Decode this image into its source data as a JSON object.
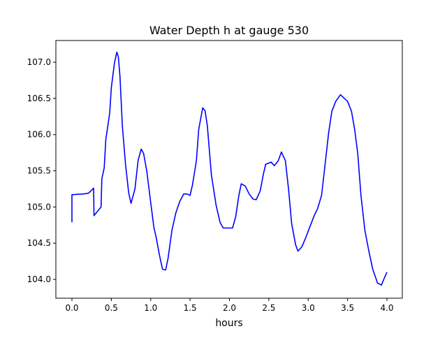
{
  "chart_data": {
    "type": "line",
    "title": "Water Depth h at gauge 530",
    "xlabel": "hours",
    "ylabel": "",
    "xlim": [
      -0.204,
      4.195
    ],
    "ylim": [
      103.74,
      107.3
    ],
    "grid": false,
    "xticks": [
      0.0,
      0.5,
      1.0,
      1.5,
      2.0,
      2.5,
      3.0,
      3.5,
      4.0
    ],
    "xtick_labels": [
      "0.0",
      "0.5",
      "1.0",
      "1.5",
      "2.0",
      "2.5",
      "3.0",
      "3.5",
      "4.0"
    ],
    "yticks": [
      104.0,
      104.5,
      105.0,
      105.5,
      106.0,
      106.5,
      107.0
    ],
    "ytick_labels": [
      "104.0",
      "104.5",
      "105.0",
      "105.5",
      "106.0",
      "106.5",
      "107.0"
    ],
    "series": [
      {
        "name": "h",
        "color": "#0000ff",
        "x": [
          0,
          0,
          0.15,
          0.21,
          0.275,
          0.28,
          0.37,
          0.38,
          0.41,
          0.43,
          0.48,
          0.5,
          0.54,
          0.57,
          0.59,
          0.61,
          0.64,
          0.68,
          0.72,
          0.75,
          0.8,
          0.84,
          0.88,
          0.91,
          0.95,
          1.0,
          1.04,
          1.07,
          1.11,
          1.15,
          1.19,
          1.22,
          1.27,
          1.32,
          1.37,
          1.42,
          1.46,
          1.5,
          1.53,
          1.58,
          1.61,
          1.66,
          1.69,
          1.72,
          1.77,
          1.83,
          1.88,
          1.92,
          1.97,
          2.04,
          2.08,
          2.12,
          2.15,
          2.2,
          2.25,
          2.3,
          2.34,
          2.39,
          2.43,
          2.46,
          2.53,
          2.57,
          2.62,
          2.66,
          2.71,
          2.75,
          2.79,
          2.84,
          2.87,
          2.92,
          2.97,
          3.03,
          3.08,
          3.12,
          3.17,
          3.21,
          3.26,
          3.3,
          3.35,
          3.41,
          3.45,
          3.5,
          3.55,
          3.59,
          3.63,
          3.67,
          3.72,
          3.77,
          3.82,
          3.88,
          3.93,
          3.96,
          4.0
        ],
        "y": [
          104.79,
          105.17,
          105.18,
          105.19,
          105.26,
          104.88,
          105.0,
          105.39,
          105.54,
          105.93,
          106.3,
          106.65,
          106.99,
          107.14,
          107.07,
          106.8,
          106.12,
          105.59,
          105.2,
          105.05,
          105.25,
          105.64,
          105.8,
          105.74,
          105.5,
          105.06,
          104.72,
          104.58,
          104.34,
          104.14,
          104.13,
          104.29,
          104.68,
          104.92,
          105.08,
          105.18,
          105.18,
          105.16,
          105.3,
          105.64,
          106.07,
          106.37,
          106.33,
          106.12,
          105.45,
          105.03,
          104.79,
          104.71,
          104.71,
          104.71,
          104.87,
          105.16,
          105.32,
          105.29,
          105.18,
          105.11,
          105.1,
          105.22,
          105.45,
          105.59,
          105.62,
          105.57,
          105.64,
          105.76,
          105.64,
          105.25,
          104.77,
          104.48,
          104.39,
          104.45,
          104.58,
          104.75,
          104.89,
          104.98,
          105.16,
          105.54,
          106.03,
          106.32,
          106.46,
          106.55,
          106.51,
          106.46,
          106.32,
          106.07,
          105.73,
          105.16,
          104.68,
          104.39,
          104.14,
          103.95,
          103.92,
          104.0,
          104.1
        ]
      }
    ]
  }
}
